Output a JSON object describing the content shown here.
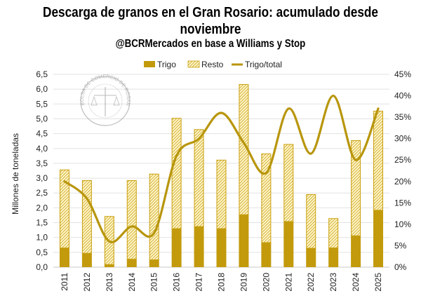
{
  "chart_data": {
    "type": "bar",
    "title": "Descarga de granos en el Gran Rosario: acumulado desde noviembre",
    "subtitle": "@BCRMercados en base a Williams y Stop",
    "ylabel": "Millones de toneladas",
    "ylim": [
      0,
      6.5
    ],
    "y2lim": [
      0,
      45
    ],
    "yticks": [
      "0,0",
      "0,5",
      "1,0",
      "1,5",
      "2,0",
      "2,5",
      "3,0",
      "3,5",
      "4,0",
      "4,5",
      "5,0",
      "5,5",
      "6,0",
      "6,5"
    ],
    "y2ticks": [
      "0%",
      "5%",
      "10%",
      "15%",
      "20%",
      "25%",
      "30%",
      "35%",
      "40%",
      "45%"
    ],
    "grid": true,
    "legend_position": "top",
    "categories": [
      "2011",
      "2012",
      "2013",
      "2014",
      "2015",
      "2016",
      "2017",
      "2018",
      "2019",
      "2020",
      "2021",
      "2022",
      "2023",
      "2024",
      "2025"
    ],
    "series": [
      {
        "name": "Trigo",
        "kind": "stacked-bar",
        "color": "#C29A0C",
        "values": [
          0.66,
          0.48,
          0.1,
          0.28,
          0.26,
          1.31,
          1.38,
          1.31,
          1.78,
          0.84,
          1.55,
          0.65,
          0.66,
          1.07,
          1.93
        ]
      },
      {
        "name": "Resto",
        "kind": "stacked-bar-hatched",
        "color": "#D4A917",
        "values": [
          2.63,
          2.45,
          1.62,
          2.65,
          2.89,
          3.72,
          3.27,
          2.31,
          4.39,
          2.99,
          2.6,
          1.81,
          0.99,
          3.21,
          3.34
        ]
      },
      {
        "name": "Trigo/total",
        "kind": "line",
        "axis": "right",
        "unit": "%",
        "color": "#B8960C",
        "values": [
          20,
          16,
          6,
          9.5,
          8,
          26,
          30,
          36,
          29,
          22,
          37,
          26.5,
          40,
          25,
          37
        ]
      }
    ]
  },
  "watermark": "BOLSA DE COMERCIO DE ROSARIO"
}
